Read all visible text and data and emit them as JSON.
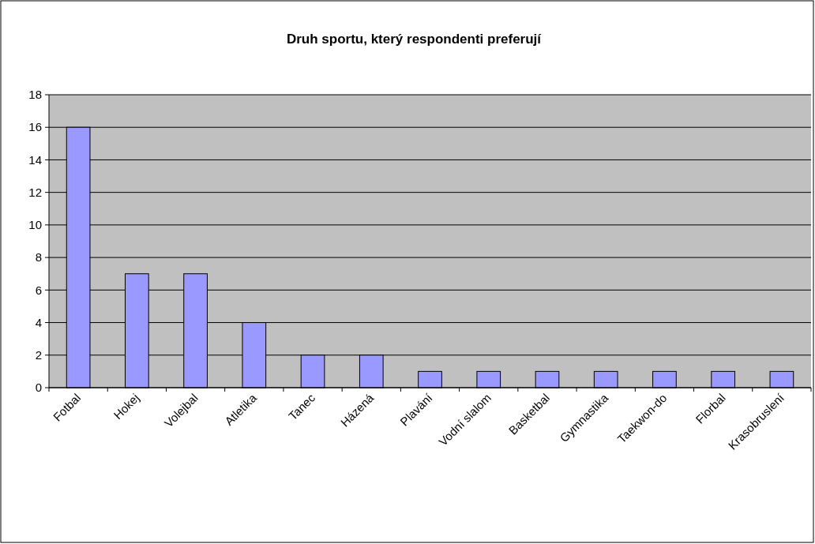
{
  "chart_data": {
    "type": "bar",
    "title": "Druh sportu, který respondenti preferují",
    "categories": [
      "Fotbal",
      "Hokej",
      "Volejbal",
      "Atletika",
      "Tanec",
      "Házená",
      "Plavání",
      "Vodní slalom",
      "Basketbal",
      "Gymnastika",
      "Taekwon-do",
      "Florbal",
      "Krasobruslení"
    ],
    "values": [
      16,
      7,
      7,
      4,
      2,
      2,
      1,
      1,
      1,
      1,
      1,
      1,
      1
    ],
    "color": "#9999ff",
    "ylim": [
      0,
      18
    ],
    "yticks": [
      0,
      2,
      4,
      6,
      8,
      10,
      12,
      14,
      16,
      18
    ],
    "grid": "y"
  }
}
